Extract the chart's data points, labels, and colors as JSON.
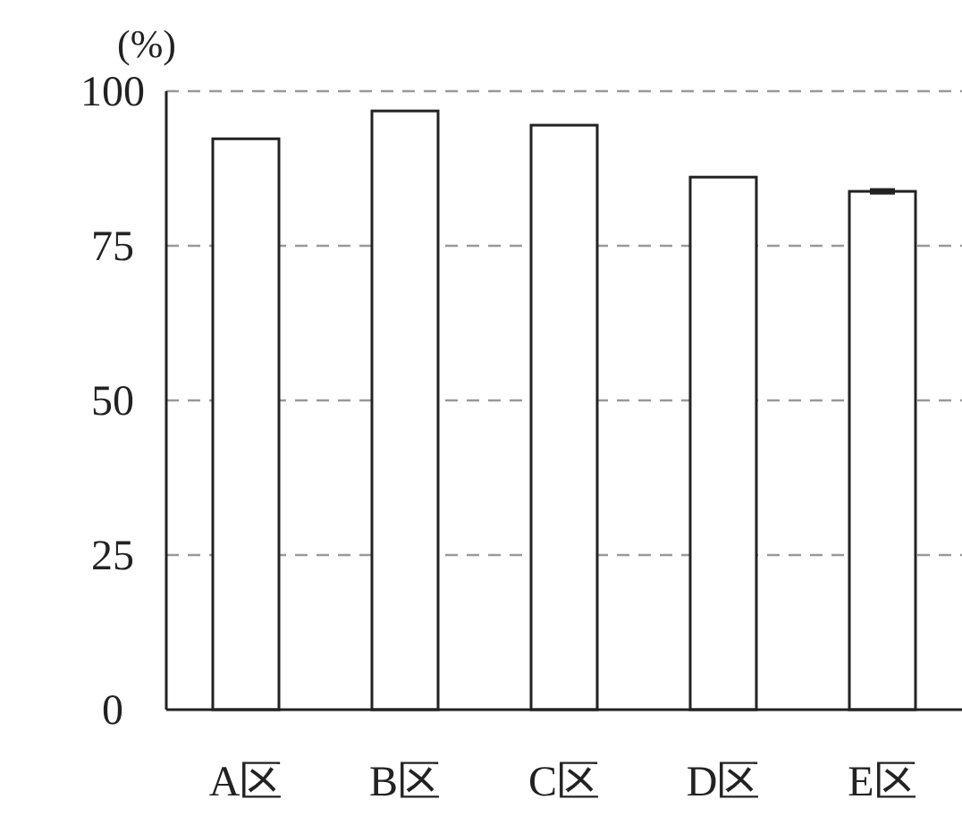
{
  "chart_data": {
    "type": "bar",
    "ylabel": "(%)",
    "categories": [
      "A区",
      "B区",
      "C区",
      "D区",
      "E区"
    ],
    "values": [
      92.3,
      96.8,
      94.5,
      86.1,
      83.8
    ],
    "errors": [
      null,
      null,
      null,
      null,
      0.3
    ],
    "color": "#ffffff",
    "ylim": [
      0,
      100
    ],
    "yticks": [
      0,
      25,
      50,
      75,
      100
    ],
    "grid": "y"
  }
}
